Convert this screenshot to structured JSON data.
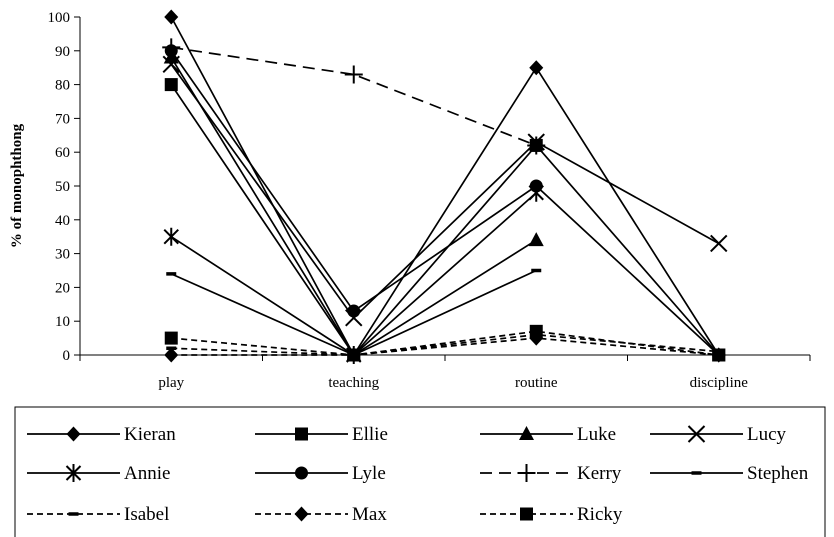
{
  "chart_data": {
    "type": "line",
    "title": "",
    "xlabel": "",
    "ylabel": "% of monophthong",
    "categories": [
      "play",
      "teaching",
      "routine",
      "discipline"
    ],
    "ylim": [
      0,
      100
    ],
    "yticks": [
      0,
      10,
      20,
      30,
      40,
      50,
      60,
      70,
      80,
      90,
      100
    ],
    "grid": false,
    "legend_position": "bottom",
    "series": [
      {
        "name": "Kieran",
        "values": [
          100,
          0,
          85,
          0
        ],
        "marker": "diamond",
        "dash": "solid"
      },
      {
        "name": "Ellie",
        "values": [
          80,
          0,
          62,
          0
        ],
        "marker": "square",
        "dash": "solid"
      },
      {
        "name": "Luke",
        "values": [
          88,
          0,
          34,
          null
        ],
        "marker": "triangle",
        "dash": "solid"
      },
      {
        "name": "Lucy",
        "values": [
          86,
          11,
          63,
          33
        ],
        "marker": "x",
        "dash": "solid"
      },
      {
        "name": "Annie",
        "values": [
          35,
          0,
          48,
          null
        ],
        "marker": "asterisk",
        "dash": "solid"
      },
      {
        "name": "Lyle",
        "values": [
          90,
          13,
          50,
          0
        ],
        "marker": "circle",
        "dash": "solid"
      },
      {
        "name": "Kerry",
        "values": [
          91,
          83,
          62,
          null
        ],
        "marker": "plus",
        "dash": "longdash"
      },
      {
        "name": "Stephen",
        "values": [
          24,
          0,
          25,
          null
        ],
        "marker": "dash",
        "dash": "solid"
      },
      {
        "name": "Isabel",
        "values": [
          2,
          0,
          6,
          1
        ],
        "marker": "dash",
        "dash": "shortdash"
      },
      {
        "name": "Max",
        "values": [
          0,
          0,
          5,
          0
        ],
        "marker": "diamond",
        "dash": "shortdash"
      },
      {
        "name": "Ricky",
        "values": [
          5,
          0,
          7,
          0
        ],
        "marker": "square",
        "dash": "shortdash"
      }
    ]
  }
}
